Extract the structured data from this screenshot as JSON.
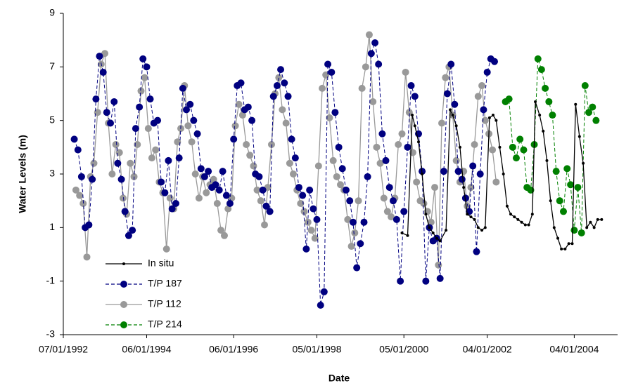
{
  "chart_data": {
    "type": "line",
    "x_label": "Date",
    "y_label": "Water Levels (m)",
    "xlim": [
      "1992-07-01",
      "2005-03-31"
    ],
    "xticks": [
      {
        "value": "1992-07-01",
        "label": "07/01/1992"
      },
      {
        "value": "1994-06-01",
        "label": "06/01/1994"
      },
      {
        "value": "1996-06-01",
        "label": "06/01/1996"
      },
      {
        "value": "1998-05-01",
        "label": "05/01/1998"
      },
      {
        "value": "2000-05-01",
        "label": "05/01/2000"
      },
      {
        "value": "2002-04-01",
        "label": "04/01/2002"
      },
      {
        "value": "2004-04-01",
        "label": "04/01/2004"
      }
    ],
    "ylim": [
      -3,
      9
    ],
    "yticks": [
      -3,
      -1,
      1,
      3,
      5,
      7,
      9
    ],
    "grid": false,
    "legend": "lower left",
    "series": [
      {
        "name": "In situ",
        "color": "#000000",
        "dash": false,
        "marker_size": 2,
        "x": [
          "2000-04-15",
          "2000-06-01",
          "2000-07-10",
          "2000-08-01",
          "2000-09-01",
          "2000-10-01",
          "2000-11-01",
          "2000-12-01",
          "2001-01-01",
          "2001-02-01",
          "2001-03-01",
          "2001-04-20",
          "2001-05-25",
          "2001-06-15",
          "2001-07-15",
          "2001-08-15",
          "2001-09-15",
          "2001-10-15",
          "2001-11-15",
          "2001-12-15",
          "2002-01-15",
          "2002-02-15",
          "2002-03-15",
          "2002-04-20",
          "2002-05-20",
          "2002-06-15",
          "2002-07-15",
          "2002-08-15",
          "2002-09-15",
          "2002-10-15",
          "2002-11-15",
          "2002-12-15",
          "2003-01-15",
          "2003-02-15",
          "2003-03-15",
          "2003-04-15",
          "2003-05-10",
          "2003-06-15",
          "2003-07-15",
          "2003-08-15",
          "2003-09-15",
          "2003-10-15",
          "2003-11-15",
          "2003-12-15",
          "2004-01-15",
          "2004-02-15",
          "2004-03-15",
          "2004-04-12",
          "2004-05-15",
          "2004-06-15",
          "2004-07-15",
          "2004-08-15",
          "2004-09-15",
          "2004-10-15",
          "2004-11-17"
        ],
        "values": [
          0.8,
          0.7,
          5.2,
          4.8,
          4.2,
          3.0,
          1.5,
          1.0,
          0.8,
          0.6,
          0.5,
          0.9,
          5.4,
          5.2,
          4.8,
          4.0,
          2.5,
          1.5,
          1.4,
          1.3,
          1.0,
          0.9,
          1.0,
          5.1,
          5.2,
          5.0,
          4.0,
          3.0,
          1.8,
          1.5,
          1.4,
          1.3,
          1.2,
          1.1,
          1.1,
          1.5,
          5.7,
          5.2,
          4.6,
          3.5,
          2.0,
          1.0,
          0.6,
          0.2,
          0.2,
          0.4,
          0.4,
          5.6,
          4.4,
          3.4,
          1.0,
          1.2,
          1.0,
          1.3,
          1.3
        ]
      },
      {
        "name": "T/P 187",
        "color": "#000080",
        "dash": true,
        "marker_size": 5,
        "x": [
          "1992-10-01",
          "1992-11-01",
          "1992-12-01",
          "1993-01-01",
          "1993-02-01",
          "1993-03-01",
          "1993-04-01",
          "1993-05-01",
          "1993-06-01",
          "1993-07-01",
          "1993-08-01",
          "1993-09-01",
          "1993-10-01",
          "1993-11-01",
          "1993-12-01",
          "1994-01-01",
          "1994-02-01",
          "1994-03-01",
          "1994-04-01",
          "1994-05-01",
          "1994-06-01",
          "1994-07-01",
          "1994-08-01",
          "1994-09-01",
          "1994-10-01",
          "1994-11-01",
          "1994-12-01",
          "1995-01-01",
          "1995-02-01",
          "1995-03-01",
          "1995-04-01",
          "1995-05-01",
          "1995-06-01",
          "1995-07-01",
          "1995-08-01",
          "1995-09-01",
          "1995-10-01",
          "1995-11-01",
          "1995-12-01",
          "1996-01-01",
          "1996-02-01",
          "1996-03-01",
          "1996-04-01",
          "1996-05-01",
          "1996-06-01",
          "1996-07-01",
          "1996-08-01",
          "1996-09-01",
          "1996-10-01",
          "1996-11-01",
          "1996-12-01",
          "1997-01-01",
          "1997-02-01",
          "1997-03-01",
          "1997-04-01",
          "1997-05-01",
          "1997-06-01",
          "1997-07-01",
          "1997-08-01",
          "1997-09-01",
          "1997-10-01",
          "1997-11-01",
          "1997-12-01",
          "1998-01-01",
          "1998-02-01",
          "1998-03-01",
          "1998-04-01",
          "1998-05-01",
          "1998-06-01",
          "1998-07-01",
          "1998-08-01",
          "1998-09-01",
          "1998-10-01",
          "1998-11-01",
          "1998-12-01",
          "1999-01-01",
          "1999-02-01",
          "1999-03-01",
          "1999-04-01",
          "1999-05-01",
          "1999-06-01",
          "1999-07-01",
          "1999-08-01",
          "1999-09-01",
          "1999-10-01",
          "1999-11-01",
          "1999-12-01",
          "2000-01-01",
          "2000-02-01",
          "2000-03-01",
          "2000-04-01",
          "2000-05-01",
          "2000-06-01",
          "2000-07-01",
          "2000-08-01",
          "2000-09-01",
          "2000-10-01",
          "2000-11-01",
          "2000-12-01",
          "2001-01-01",
          "2001-02-01",
          "2001-03-01",
          "2001-04-01",
          "2001-05-01",
          "2001-06-01",
          "2001-07-01",
          "2001-08-01",
          "2001-09-01",
          "2001-10-01",
          "2001-11-01",
          "2001-12-01",
          "2002-01-01",
          "2002-02-01",
          "2002-03-01",
          "2002-04-01",
          "2002-05-01",
          "2002-06-01"
        ],
        "values": [
          4.3,
          3.9,
          2.9,
          1.0,
          1.1,
          2.8,
          5.8,
          7.4,
          6.8,
          5.3,
          4.9,
          5.7,
          3.4,
          2.8,
          1.6,
          0.7,
          0.9,
          4.7,
          5.5,
          7.3,
          7.0,
          5.8,
          4.9,
          5.0,
          2.7,
          2.3,
          3.5,
          1.7,
          1.9,
          3.6,
          6.2,
          5.4,
          5.6,
          5.0,
          4.5,
          3.2,
          2.9,
          3.1,
          2.5,
          2.6,
          2.4,
          3.1,
          2.2,
          1.9,
          4.3,
          6.3,
          6.4,
          5.4,
          5.5,
          5.0,
          3.0,
          2.9,
          2.4,
          1.8,
          1.6,
          5.9,
          6.3,
          6.9,
          6.4,
          5.9,
          4.3,
          3.6,
          2.5,
          2.2,
          0.2,
          2.4,
          1.7,
          1.3,
          -1.9,
          -1.4,
          7.1,
          6.8,
          5.3,
          4.0,
          3.2,
          2.4,
          2.0,
          1.2,
          -0.5,
          0.4,
          1.2,
          2.9,
          7.5,
          7.9,
          7.1,
          4.5,
          3.5,
          2.5,
          2.0,
          1.3,
          -1.0,
          1.6,
          4.0,
          6.3,
          5.9,
          4.5,
          3.1,
          -1.0,
          1.0,
          0.5,
          0.6,
          -0.9,
          3.1,
          6.0,
          7.1,
          5.6,
          3.1,
          2.8,
          2.1,
          1.6,
          3.3,
          0.1,
          3.0,
          5.4,
          6.8,
          7.3,
          7.2
        ]
      },
      {
        "name": "T/P 112",
        "color": "#999999",
        "dash": false,
        "marker_size": 5,
        "x": [
          "1992-10-15",
          "1992-11-15",
          "1992-12-15",
          "1993-01-15",
          "1993-02-15",
          "1993-03-15",
          "1993-04-15",
          "1993-05-15",
          "1993-06-15",
          "1993-07-15",
          "1993-08-15",
          "1993-09-15",
          "1993-10-15",
          "1993-11-15",
          "1993-12-15",
          "1994-01-15",
          "1994-02-15",
          "1994-03-15",
          "1994-04-15",
          "1994-05-15",
          "1994-06-15",
          "1994-07-15",
          "1994-08-15",
          "1994-09-15",
          "1994-10-15",
          "1994-11-15",
          "1994-12-15",
          "1995-01-15",
          "1995-02-15",
          "1995-03-15",
          "1995-04-15",
          "1995-05-15",
          "1995-06-15",
          "1995-07-15",
          "1995-08-15",
          "1995-09-15",
          "1995-10-15",
          "1995-11-15",
          "1995-12-15",
          "1996-01-15",
          "1996-02-15",
          "1996-03-15",
          "1996-04-15",
          "1996-05-15",
          "1996-06-15",
          "1996-07-15",
          "1996-08-15",
          "1996-09-15",
          "1996-10-15",
          "1996-11-15",
          "1996-12-15",
          "1997-01-15",
          "1997-02-15",
          "1997-03-15",
          "1997-04-15",
          "1997-05-15",
          "1997-06-15",
          "1997-07-15",
          "1997-08-15",
          "1997-09-15",
          "1997-10-15",
          "1997-11-15",
          "1997-12-15",
          "1998-01-15",
          "1998-02-15",
          "1998-03-15",
          "1998-04-15",
          "1998-05-15",
          "1998-06-15",
          "1998-07-15",
          "1998-08-15",
          "1998-09-15",
          "1998-10-15",
          "1998-11-15",
          "1998-12-15",
          "1999-01-15",
          "1999-02-15",
          "1999-03-15",
          "1999-04-15",
          "1999-05-15",
          "1999-06-15",
          "1999-07-15",
          "1999-08-15",
          "1999-09-15",
          "1999-10-15",
          "1999-11-15",
          "1999-12-15",
          "2000-01-15",
          "2000-02-15",
          "2000-03-15",
          "2000-04-15",
          "2000-05-15",
          "2000-06-15",
          "2000-07-15",
          "2000-08-15",
          "2000-09-15",
          "2000-10-15",
          "2000-11-15",
          "2000-12-15",
          "2001-01-15",
          "2001-02-15",
          "2001-03-15",
          "2001-04-15",
          "2001-05-15",
          "2001-06-15",
          "2001-07-15",
          "2001-08-15",
          "2001-09-15",
          "2001-10-15",
          "2001-11-15",
          "2001-12-15",
          "2002-01-15",
          "2002-02-15",
          "2002-03-15",
          "2002-04-15",
          "2002-05-15",
          "2002-06-15"
        ],
        "values": [
          2.4,
          2.2,
          1.9,
          -0.1,
          2.9,
          3.4,
          5.3,
          7.1,
          7.5,
          4.9,
          3.0,
          4.1,
          3.8,
          2.1,
          1.5,
          3.4,
          2.9,
          4.1,
          6.1,
          6.6,
          4.7,
          3.6,
          3.9,
          2.7,
          2.3,
          0.2,
          2.1,
          1.7,
          4.2,
          4.7,
          6.3,
          4.8,
          4.2,
          3.0,
          2.1,
          2.9,
          2.3,
          2.6,
          2.8,
          1.9,
          0.9,
          0.7,
          1.7,
          2.1,
          4.8,
          5.6,
          5.2,
          4.1,
          3.7,
          3.3,
          2.4,
          2.0,
          1.1,
          2.5,
          4.1,
          6.0,
          6.6,
          5.4,
          4.9,
          3.4,
          3.0,
          2.4,
          1.9,
          1.6,
          1.2,
          0.9,
          0.6,
          3.3,
          6.2,
          6.7,
          5.1,
          3.5,
          2.9,
          2.6,
          2.4,
          1.3,
          0.3,
          0.8,
          2.0,
          6.2,
          7.0,
          8.2,
          5.7,
          4.0,
          3.4,
          2.1,
          1.6,
          1.4,
          2.1,
          4.1,
          4.5,
          6.8,
          5.3,
          3.8,
          2.7,
          2.0,
          1.9,
          1.6,
          1.2,
          2.5,
          -0.4,
          4.9,
          6.6,
          7.0,
          5.2,
          3.5,
          2.7,
          3.1,
          1.8,
          2.5,
          4.1,
          5.9,
          6.3,
          5.0,
          4.5,
          3.9,
          2.7
        ]
      },
      {
        "name": "T/P 214",
        "color": "#008000",
        "dash": true,
        "marker_size": 5,
        "x": [
          "2002-09-01",
          "2002-10-01",
          "2002-11-01",
          "2002-12-01",
          "2003-01-01",
          "2003-02-01",
          "2003-03-01",
          "2003-04-01",
          "2003-05-01",
          "2003-06-01",
          "2003-07-01",
          "2003-08-01",
          "2003-09-01",
          "2003-10-01",
          "2003-11-01",
          "2003-12-01",
          "2004-01-01",
          "2004-02-01",
          "2004-03-01",
          "2004-04-01",
          "2004-05-01",
          "2004-06-01",
          "2004-07-01",
          "2004-08-01",
          "2004-09-01",
          "2004-10-01"
        ],
        "values": [
          5.7,
          5.8,
          4.0,
          3.6,
          4.3,
          3.9,
          2.5,
          2.4,
          4.1,
          7.3,
          6.9,
          6.2,
          5.7,
          5.2,
          3.1,
          2.0,
          1.6,
          3.2,
          2.6,
          0.9,
          2.5,
          0.8,
          6.3,
          5.3,
          5.5,
          5.0
        ]
      }
    ]
  }
}
